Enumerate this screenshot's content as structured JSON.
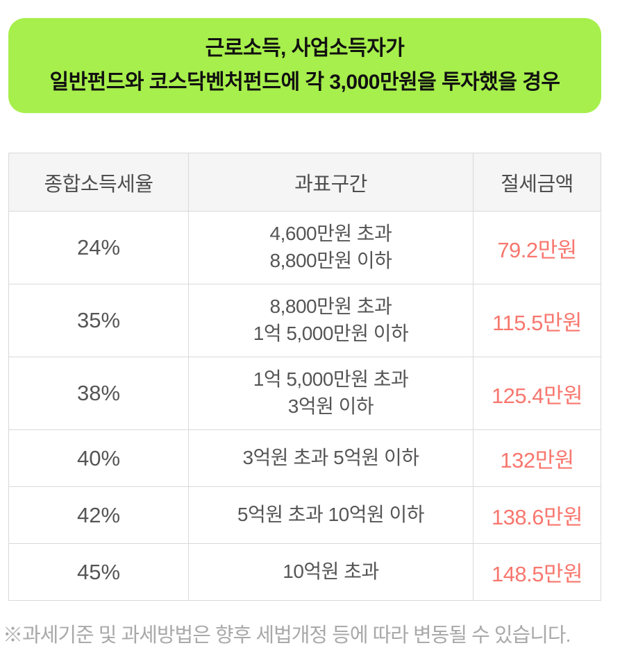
{
  "colors": {
    "banner_bg": "#a7ef4c",
    "banner_text": "#111111",
    "header_bg": "#f5f5f5",
    "header_text": "#4e4e4e",
    "cell_text": "#555555",
    "savings_text": "#f8776e",
    "border": "#d9d9d9",
    "footnote_text": "#a9a9a9"
  },
  "banner": {
    "line1": "근로소득, 사업소득자가",
    "line2": "일반펀드와 코스닥벤처펀드에 각 3,000만원을 투자했을 경우"
  },
  "table": {
    "headers": [
      "종합소득세율",
      "과표구간",
      "절세금액"
    ],
    "rows": [
      {
        "rate": "24%",
        "bracket_line1": "4,600만원 초과",
        "bracket_line2": "8,800만원 이하",
        "savings": "79.2만원"
      },
      {
        "rate": "35%",
        "bracket_line1": "8,800만원 초과",
        "bracket_line2": "1억 5,000만원 이하",
        "savings": "115.5만원"
      },
      {
        "rate": "38%",
        "bracket_line1": "1억 5,000만원 초과",
        "bracket_line2": "3억원 이하",
        "savings": "125.4만원"
      },
      {
        "rate": "40%",
        "bracket_line1": "3억원 초과 5억원 이하",
        "bracket_line2": "",
        "savings": "132만원"
      },
      {
        "rate": "42%",
        "bracket_line1": "5억원 초과 10억원 이하",
        "bracket_line2": "",
        "savings": "138.6만원"
      },
      {
        "rate": "45%",
        "bracket_line1": "10억원 초과",
        "bracket_line2": "",
        "savings": "148.5만원"
      }
    ]
  },
  "footnote": "※과세기준 및 과세방법은 향후 세법개정 등에 따라 변동될 수 있습니다.",
  "chart_data": {
    "type": "table",
    "title": "근로소득, 사업소득자가 일반펀드와 코스닥벤처펀드에 각 3,000만원을 투자했을 경우",
    "columns": [
      "종합소득세율",
      "과표구간",
      "절세금액"
    ],
    "rows": [
      [
        "24%",
        "4,600만원 초과 8,800만원 이하",
        "79.2만원"
      ],
      [
        "35%",
        "8,800만원 초과 1억 5,000만원 이하",
        "115.5만원"
      ],
      [
        "38%",
        "1억 5,000만원 초과 3억원 이하",
        "125.4만원"
      ],
      [
        "40%",
        "3억원 초과 5억원 이하",
        "132만원"
      ],
      [
        "42%",
        "5억원 초과 10억원 이하",
        "138.6만원"
      ],
      [
        "45%",
        "10억원 초과",
        "148.5만원"
      ]
    ],
    "footnote": "※과세기준 및 과세방법은 향후 세법개정 등에 따라 변동될 수 있습니다.",
    "layout": {
      "grid": "bordered",
      "header_background": "#f5f5f5",
      "savings_column_color": "#f8776e"
    }
  }
}
